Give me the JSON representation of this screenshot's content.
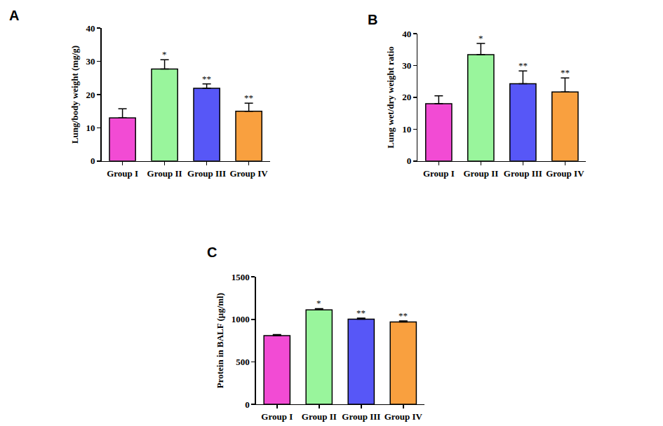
{
  "chart_data": [
    {
      "type": "bar",
      "title": "A",
      "y_label": "Lung/body weight (mg/g)",
      "categories": [
        "Group I",
        "Group II",
        "Group III",
        "Group IV"
      ],
      "values": [
        13,
        27.7,
        21.9,
        15
      ],
      "errors": [
        2.7,
        2.8,
        1.3,
        2.4
      ],
      "annotations": [
        null,
        "*",
        "**",
        "**"
      ],
      "colors": [
        "#f24bd4",
        "#99f59c",
        "#5757f7",
        "#f9a03f"
      ],
      "ylim": [
        0,
        40
      ],
      "yticks": [
        0,
        10,
        20,
        30,
        40
      ],
      "grid": false
    },
    {
      "type": "bar",
      "title": "B",
      "y_label": "Lung wet/dry weight ratio",
      "categories": [
        "Group I",
        "Group II",
        "Group III",
        "Group IV"
      ],
      "values": [
        18,
        33.4,
        24.3,
        21.7
      ],
      "errors": [
        2.5,
        3.5,
        4,
        4.4
      ],
      "annotations": [
        null,
        "*",
        "**",
        "**"
      ],
      "colors": [
        "#f24bd4",
        "#99f59c",
        "#5757f7",
        "#f9a03f"
      ],
      "ylim": [
        0,
        40
      ],
      "yticks": [
        0,
        10,
        20,
        30,
        40
      ],
      "grid": false
    },
    {
      "type": "bar",
      "title": "C",
      "y_label": "Protein in BALF (μg/ml)",
      "categories": [
        "Group I",
        "Group II",
        "Group III",
        "Group IV"
      ],
      "values": [
        808,
        1112,
        1003,
        970
      ],
      "errors": [
        12,
        15,
        12,
        12
      ],
      "annotations": [
        null,
        "*",
        "**",
        "**"
      ],
      "colors": [
        "#f24bd4",
        "#99f59c",
        "#5757f7",
        "#f9a03f"
      ],
      "ylim": [
        0,
        1500
      ],
      "yticks": [
        0,
        500,
        1000,
        1500
      ],
      "grid": false
    }
  ]
}
